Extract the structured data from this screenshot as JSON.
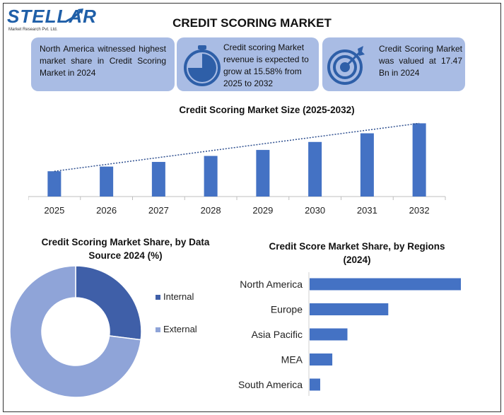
{
  "header": {
    "logo_text": "STELLAR",
    "logo_sub": "Market Research Pvt. Ltd.",
    "title": "CREDIT SCORING MARKET"
  },
  "cards": {
    "card1": {
      "text": "North America witnessed highest market share in Credit Scoring Market in 2024"
    },
    "card2": {
      "text": "Credit scoring Market revenue is expected to grow at 15.58% from 2025 to 2032"
    },
    "card3": {
      "text": "Credit Scoring Market was valued at 17.47 Bn in 2024"
    }
  },
  "colors": {
    "bar": "#4472c4",
    "internal": "#3f5fa8",
    "external": "#8fa4d8",
    "card_bg": "#a9bce4",
    "icon": "#2e5fa8"
  },
  "icons": [
    "stopwatch-icon",
    "target-icon"
  ],
  "chart_data": [
    {
      "type": "bar",
      "title": "Credit Scoring Market Size (2025-2032)",
      "categories": [
        "2025",
        "2026",
        "2027",
        "2028",
        "2029",
        "2030",
        "2031",
        "2032"
      ],
      "values": [
        38,
        45,
        52,
        61,
        70,
        82,
        95,
        110
      ],
      "trendline": true,
      "ylim": [
        0,
        120
      ]
    },
    {
      "type": "pie",
      "title": "Credit Scoring Market Share, by Data Source 2024 (%)",
      "labels": [
        "Internal",
        "External"
      ],
      "values": [
        27,
        73
      ],
      "donut": true,
      "legend": "right"
    },
    {
      "type": "bar",
      "orientation": "horizontal",
      "title": "Credit Score Market Share, by Regions (2024)",
      "categories": [
        "North America",
        "Europe",
        "Asia Pacific",
        "MEA",
        "South America"
      ],
      "values": [
        100,
        52,
        25,
        15,
        7
      ],
      "xlim": [
        0,
        100
      ]
    }
  ]
}
